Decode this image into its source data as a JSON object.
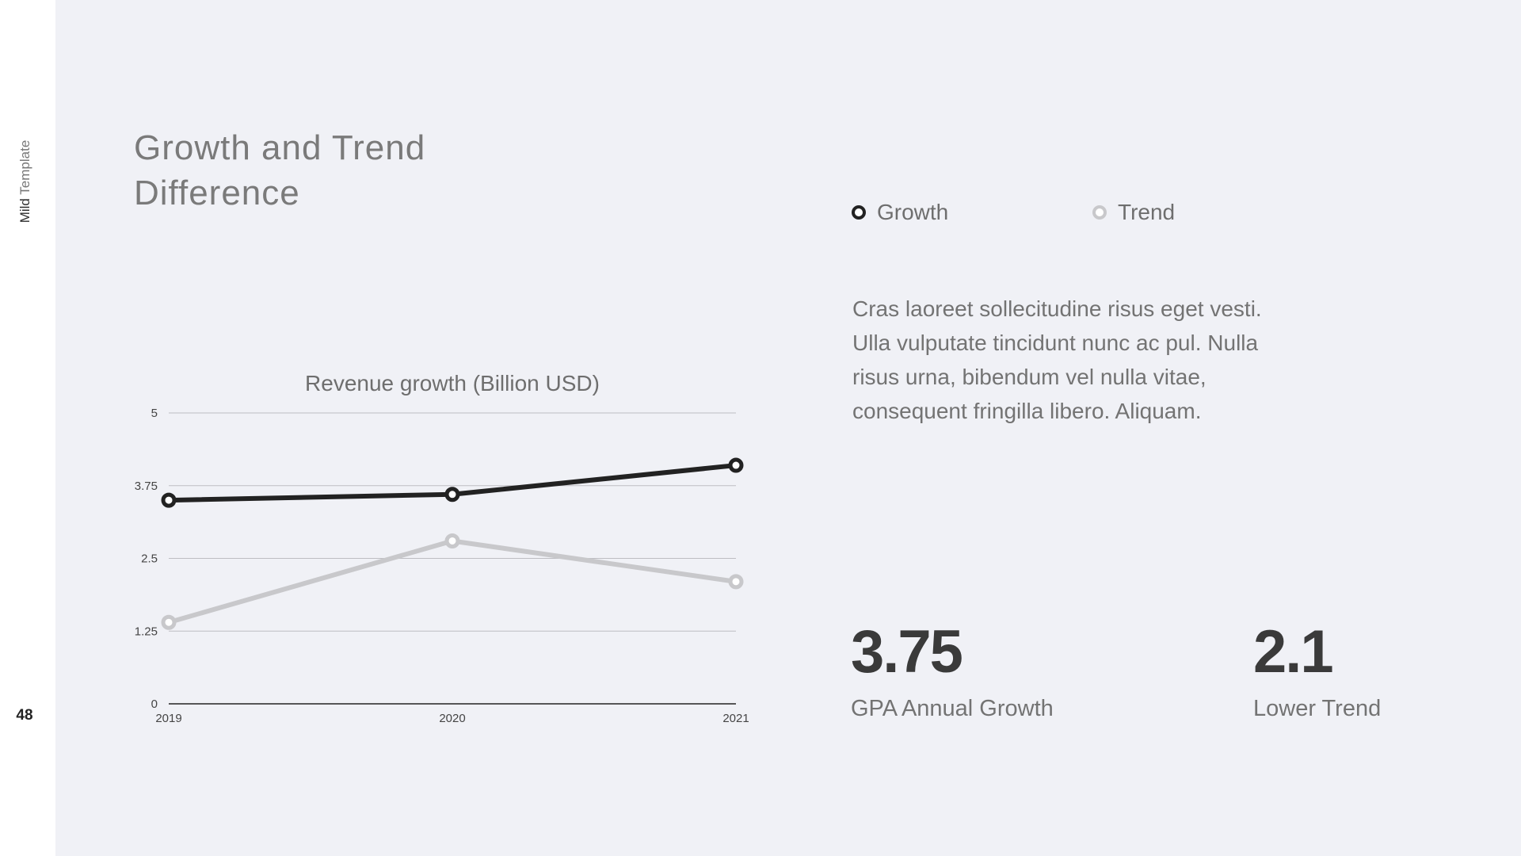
{
  "sidebar": {
    "label_bold": "Mild",
    "label_light": "Template",
    "page_number": "48"
  },
  "slide": {
    "title": "Growth and Trend Difference"
  },
  "legend": [
    {
      "name": "Growth",
      "color": "#222222"
    },
    {
      "name": "Trend",
      "color": "#c8c8cb"
    }
  ],
  "description": "Cras laoreet sollecitudine risus eget vesti. Ulla vulputate tincidunt nunc ac pul. Nulla risus urna, bibendum vel nulla vitae, consequent fringilla libero. Aliquam.",
  "stats": [
    {
      "value": "3.75",
      "label": "GPA Annual Growth"
    },
    {
      "value": "2.1",
      "label": "Lower Trend"
    }
  ],
  "chart_data": {
    "type": "line",
    "title": "Revenue growth (Billion USD)",
    "xlabel": "",
    "ylabel": "",
    "categories": [
      "2019",
      "2020",
      "2021"
    ],
    "yticks": [
      "0",
      "1.25",
      "2.5",
      "3.75",
      "5"
    ],
    "ylim": [
      0,
      5
    ],
    "grid": true,
    "series": [
      {
        "name": "Growth",
        "values": [
          3.5,
          3.6,
          4.1
        ],
        "color": "#222222"
      },
      {
        "name": "Trend",
        "values": [
          1.4,
          2.8,
          2.1
        ],
        "color": "#c8c8cb"
      }
    ]
  }
}
